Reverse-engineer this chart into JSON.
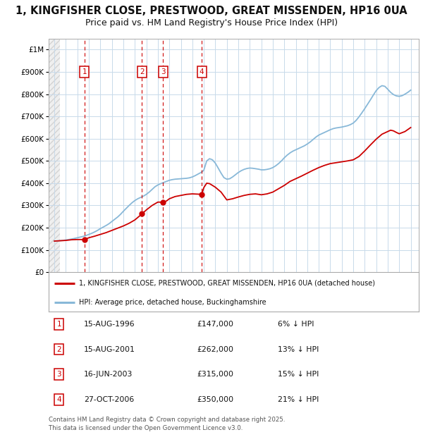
{
  "title": "1, KINGFISHER CLOSE, PRESTWOOD, GREAT MISSENDEN, HP16 0UA",
  "subtitle": "Price paid vs. HM Land Registry's House Price Index (HPI)",
  "title_fontsize": 10.5,
  "subtitle_fontsize": 9.0,
  "ylim": [
    0,
    1050000
  ],
  "xlim_start": 1993.5,
  "xlim_end": 2025.7,
  "yticks": [
    0,
    100000,
    200000,
    300000,
    400000,
    500000,
    600000,
    700000,
    800000,
    900000,
    1000000
  ],
  "ytick_labels": [
    "£0",
    "£100K",
    "£200K",
    "£300K",
    "£400K",
    "£500K",
    "£600K",
    "£700K",
    "£800K",
    "£900K",
    "£1M"
  ],
  "hatch_end_year": 1994.5,
  "transactions": [
    {
      "num": 1,
      "date": "15-AUG-1996",
      "price": 147000,
      "year": 1996.62,
      "hpi_pct": "6% ↓ HPI"
    },
    {
      "num": 2,
      "date": "15-AUG-2001",
      "price": 262000,
      "year": 2001.62,
      "hpi_pct": "13% ↓ HPI"
    },
    {
      "num": 3,
      "date": "16-JUN-2003",
      "price": 315000,
      "year": 2003.46,
      "hpi_pct": "15% ↓ HPI"
    },
    {
      "num": 4,
      "date": "27-OCT-2006",
      "price": 350000,
      "year": 2006.82,
      "hpi_pct": "21% ↓ HPI"
    }
  ],
  "price_line_color": "#cc0000",
  "hpi_line_color": "#88b8d8",
  "hpi_data": [
    [
      1994.0,
      140000
    ],
    [
      1994.25,
      141000
    ],
    [
      1994.5,
      142000
    ],
    [
      1994.75,
      143000
    ],
    [
      1995.0,
      145000
    ],
    [
      1995.25,
      147000
    ],
    [
      1995.5,
      149000
    ],
    [
      1995.75,
      152000
    ],
    [
      1996.0,
      155000
    ],
    [
      1996.25,
      158000
    ],
    [
      1996.5,
      161000
    ],
    [
      1996.75,
      165000
    ],
    [
      1997.0,
      170000
    ],
    [
      1997.25,
      175000
    ],
    [
      1997.5,
      181000
    ],
    [
      1997.75,
      188000
    ],
    [
      1998.0,
      196000
    ],
    [
      1998.25,
      203000
    ],
    [
      1998.5,
      210000
    ],
    [
      1998.75,
      218000
    ],
    [
      1999.0,
      228000
    ],
    [
      1999.25,
      238000
    ],
    [
      1999.5,
      248000
    ],
    [
      1999.75,
      260000
    ],
    [
      2000.0,
      274000
    ],
    [
      2000.25,
      287000
    ],
    [
      2000.5,
      300000
    ],
    [
      2000.75,
      312000
    ],
    [
      2001.0,
      322000
    ],
    [
      2001.25,
      330000
    ],
    [
      2001.5,
      336000
    ],
    [
      2001.75,
      342000
    ],
    [
      2002.0,
      350000
    ],
    [
      2002.25,
      360000
    ],
    [
      2002.5,
      372000
    ],
    [
      2002.75,
      384000
    ],
    [
      2003.0,
      392000
    ],
    [
      2003.25,
      398000
    ],
    [
      2003.5,
      403000
    ],
    [
      2003.75,
      408000
    ],
    [
      2004.0,
      413000
    ],
    [
      2004.25,
      416000
    ],
    [
      2004.5,
      418000
    ],
    [
      2004.75,
      419000
    ],
    [
      2005.0,
      420000
    ],
    [
      2005.25,
      421000
    ],
    [
      2005.5,
      422000
    ],
    [
      2005.75,
      424000
    ],
    [
      2006.0,
      428000
    ],
    [
      2006.25,
      434000
    ],
    [
      2006.5,
      441000
    ],
    [
      2006.75,
      448000
    ],
    [
      2007.0,
      458000
    ],
    [
      2007.25,
      500000
    ],
    [
      2007.5,
      510000
    ],
    [
      2007.75,
      505000
    ],
    [
      2008.0,
      490000
    ],
    [
      2008.25,
      468000
    ],
    [
      2008.5,
      445000
    ],
    [
      2008.75,
      425000
    ],
    [
      2009.0,
      418000
    ],
    [
      2009.25,
      420000
    ],
    [
      2009.5,
      428000
    ],
    [
      2009.75,
      438000
    ],
    [
      2010.0,
      448000
    ],
    [
      2010.25,
      456000
    ],
    [
      2010.5,
      462000
    ],
    [
      2010.75,
      466000
    ],
    [
      2011.0,
      468000
    ],
    [
      2011.25,
      467000
    ],
    [
      2011.5,
      465000
    ],
    [
      2011.75,
      463000
    ],
    [
      2012.0,
      460000
    ],
    [
      2012.25,
      460000
    ],
    [
      2012.5,
      462000
    ],
    [
      2012.75,
      465000
    ],
    [
      2013.0,
      470000
    ],
    [
      2013.25,
      478000
    ],
    [
      2013.5,
      488000
    ],
    [
      2013.75,
      500000
    ],
    [
      2014.0,
      514000
    ],
    [
      2014.25,
      526000
    ],
    [
      2014.5,
      536000
    ],
    [
      2014.75,
      544000
    ],
    [
      2015.0,
      550000
    ],
    [
      2015.25,
      556000
    ],
    [
      2015.5,
      562000
    ],
    [
      2015.75,
      568000
    ],
    [
      2016.0,
      576000
    ],
    [
      2016.25,
      585000
    ],
    [
      2016.5,
      596000
    ],
    [
      2016.75,
      607000
    ],
    [
      2017.0,
      616000
    ],
    [
      2017.25,
      622000
    ],
    [
      2017.5,
      628000
    ],
    [
      2017.75,
      634000
    ],
    [
      2018.0,
      640000
    ],
    [
      2018.25,
      645000
    ],
    [
      2018.5,
      648000
    ],
    [
      2018.75,
      650000
    ],
    [
      2019.0,
      652000
    ],
    [
      2019.25,
      655000
    ],
    [
      2019.5,
      658000
    ],
    [
      2019.75,
      663000
    ],
    [
      2020.0,
      670000
    ],
    [
      2020.25,
      682000
    ],
    [
      2020.5,
      698000
    ],
    [
      2020.75,
      716000
    ],
    [
      2021.0,
      735000
    ],
    [
      2021.25,
      755000
    ],
    [
      2021.5,
      775000
    ],
    [
      2021.75,
      796000
    ],
    [
      2022.0,
      816000
    ],
    [
      2022.25,
      830000
    ],
    [
      2022.5,
      838000
    ],
    [
      2022.75,
      835000
    ],
    [
      2023.0,
      822000
    ],
    [
      2023.25,
      808000
    ],
    [
      2023.5,
      798000
    ],
    [
      2023.75,
      792000
    ],
    [
      2024.0,
      790000
    ],
    [
      2024.25,
      793000
    ],
    [
      2024.5,
      800000
    ],
    [
      2024.75,
      808000
    ],
    [
      2025.0,
      818000
    ]
  ],
  "price_data": [
    [
      1994.0,
      140000
    ],
    [
      1994.5,
      141500
    ],
    [
      1995.0,
      143000
    ],
    [
      1995.5,
      146000
    ],
    [
      1996.0,
      147000
    ],
    [
      1996.62,
      147000
    ],
    [
      1997.0,
      155000
    ],
    [
      1997.5,
      162000
    ],
    [
      1998.0,
      170000
    ],
    [
      1998.5,
      178000
    ],
    [
      1999.0,
      188000
    ],
    [
      1999.5,
      198000
    ],
    [
      2000.0,
      208000
    ],
    [
      2000.5,
      220000
    ],
    [
      2001.0,
      235000
    ],
    [
      2001.62,
      262000
    ],
    [
      2002.0,
      280000
    ],
    [
      2002.5,
      300000
    ],
    [
      2003.0,
      315000
    ],
    [
      2003.46,
      315000
    ],
    [
      2003.75,
      320000
    ],
    [
      2004.0,
      330000
    ],
    [
      2004.5,
      340000
    ],
    [
      2005.0,
      345000
    ],
    [
      2005.5,
      350000
    ],
    [
      2006.0,
      352000
    ],
    [
      2006.82,
      350000
    ],
    [
      2007.0,
      380000
    ],
    [
      2007.25,
      400000
    ],
    [
      2007.5,
      398000
    ],
    [
      2008.0,
      382000
    ],
    [
      2008.5,
      360000
    ],
    [
      2009.0,
      325000
    ],
    [
      2009.5,
      330000
    ],
    [
      2010.0,
      338000
    ],
    [
      2010.5,
      345000
    ],
    [
      2011.0,
      350000
    ],
    [
      2011.5,
      352000
    ],
    [
      2012.0,
      348000
    ],
    [
      2012.5,
      352000
    ],
    [
      2013.0,
      360000
    ],
    [
      2013.5,
      375000
    ],
    [
      2014.0,
      390000
    ],
    [
      2014.5,
      408000
    ],
    [
      2015.0,
      420000
    ],
    [
      2015.5,
      432000
    ],
    [
      2016.0,
      445000
    ],
    [
      2016.5,
      458000
    ],
    [
      2017.0,
      470000
    ],
    [
      2017.5,
      480000
    ],
    [
      2018.0,
      488000
    ],
    [
      2018.5,
      492000
    ],
    [
      2019.0,
      496000
    ],
    [
      2019.5,
      500000
    ],
    [
      2020.0,
      505000
    ],
    [
      2020.5,
      520000
    ],
    [
      2021.0,
      545000
    ],
    [
      2021.5,
      572000
    ],
    [
      2022.0,
      598000
    ],
    [
      2022.5,
      620000
    ],
    [
      2023.0,
      632000
    ],
    [
      2023.25,
      638000
    ],
    [
      2023.5,
      635000
    ],
    [
      2023.75,
      628000
    ],
    [
      2024.0,
      622000
    ],
    [
      2024.5,
      632000
    ],
    [
      2025.0,
      650000
    ]
  ],
  "legend_label_red": "1, KINGFISHER CLOSE, PRESTWOOD, GREAT MISSENDEN, HP16 0UA (detached house)",
  "legend_label_blue": "HPI: Average price, detached house, Buckinghamshire",
  "footer": "Contains HM Land Registry data © Crown copyright and database right 2025.\nThis data is licensed under the Open Government Licence v3.0.",
  "bg_color": "#ffffff",
  "grid_color": "#c8daea"
}
